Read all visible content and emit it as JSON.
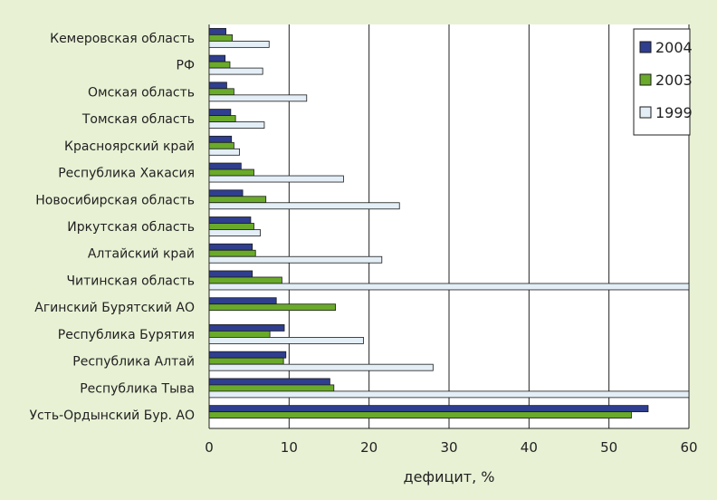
{
  "chart_data": {
    "type": "bar",
    "orientation": "horizontal",
    "categories": [
      "Кемеровская область",
      "РФ",
      "Омская область",
      "Томская область",
      "Красноярский край",
      "Республика Хакасия",
      "Новосибирская область",
      "Иркутская область",
      "Алтайский край",
      "Читинская область",
      "Агинский Бурятский АО",
      "Республика Бурятия",
      "Республика Алтай",
      "Республика Тыва",
      "Усть-Ордынский Бур. АО"
    ],
    "series": [
      {
        "name": "2004",
        "color": "#2f3e8f",
        "values": [
          2.1,
          2.0,
          2.2,
          2.7,
          2.8,
          4.0,
          4.2,
          5.2,
          5.4,
          5.4,
          8.4,
          9.4,
          9.6,
          15.1,
          54.9
        ]
      },
      {
        "name": "2003",
        "color": "#6aaa2a",
        "values": [
          2.9,
          2.6,
          3.1,
          3.3,
          3.1,
          5.6,
          7.1,
          5.6,
          5.8,
          9.1,
          15.8,
          7.6,
          9.3,
          15.6,
          52.8
        ]
      },
      {
        "name": "1999",
        "color": "#e3eef6",
        "values": [
          7.5,
          6.7,
          12.2,
          6.9,
          3.8,
          16.8,
          23.8,
          6.4,
          21.6,
          60,
          null,
          19.3,
          28.0,
          60.1,
          null
        ]
      }
    ],
    "xlabel": "дефицит, %",
    "xlim": [
      0,
      60
    ],
    "xticks": [
      "0",
      "10",
      "20",
      "30",
      "40",
      "50",
      "60"
    ],
    "grid": "vertical",
    "legend": {
      "position": "top-right",
      "order": [
        "2004",
        "2003",
        "1999"
      ]
    }
  }
}
